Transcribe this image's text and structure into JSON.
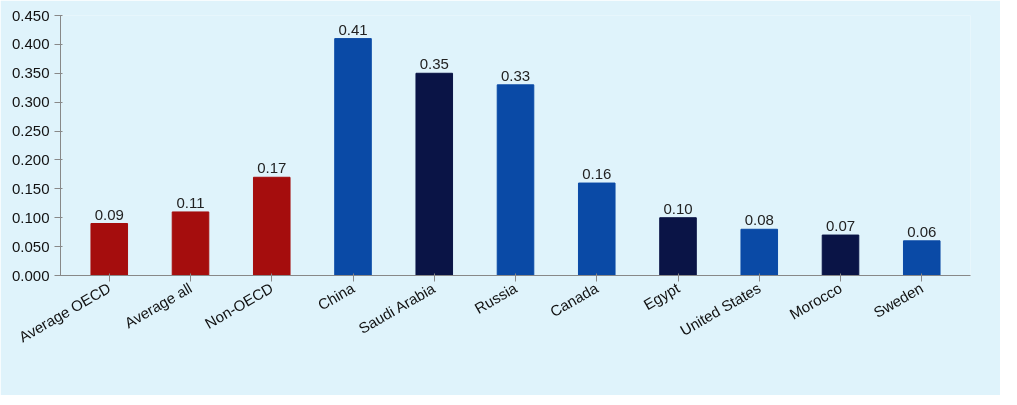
{
  "chart_data": {
    "type": "bar",
    "categories": [
      "Average OECD",
      "Average all",
      "Non-OECD",
      "China",
      "Saudi Arabia",
      "Russia",
      "Canada",
      "Egypt",
      "United States",
      "Morocco",
      "Sweden"
    ],
    "values": [
      0.09,
      0.11,
      0.17,
      0.41,
      0.35,
      0.33,
      0.16,
      0.1,
      0.08,
      0.07,
      0.06
    ],
    "colors": [
      "#a50d0d",
      "#a50d0d",
      "#a50d0d",
      "#0a4aa6",
      "#0a1446",
      "#0a4aa6",
      "#0a4aa6",
      "#0a1446",
      "#0a4aa6",
      "#0a1446",
      "#0a4aa6"
    ],
    "value_labels": [
      "0.09",
      "0.11",
      "0.17",
      "0.41",
      "0.35",
      "0.33",
      "0.16",
      "0.10",
      "0.08",
      "0.07",
      "0.06"
    ],
    "ylim": [
      0,
      0.45
    ],
    "yticks": [
      {
        "value": 0,
        "label": "0.000"
      },
      {
        "value": 0.05,
        "label": "0.050"
      },
      {
        "value": 0.1,
        "label": "0.100"
      },
      {
        "value": 0.15,
        "label": "0.150"
      },
      {
        "value": 0.2,
        "label": "0.200"
      },
      {
        "value": 0.25,
        "label": "0.250"
      },
      {
        "value": 0.3,
        "label": "0.300"
      },
      {
        "value": 0.35,
        "label": "0.350"
      },
      {
        "value": 0.4,
        "label": "0.400"
      },
      {
        "value": 0.45,
        "label": "0.450"
      }
    ],
    "grid": false
  }
}
